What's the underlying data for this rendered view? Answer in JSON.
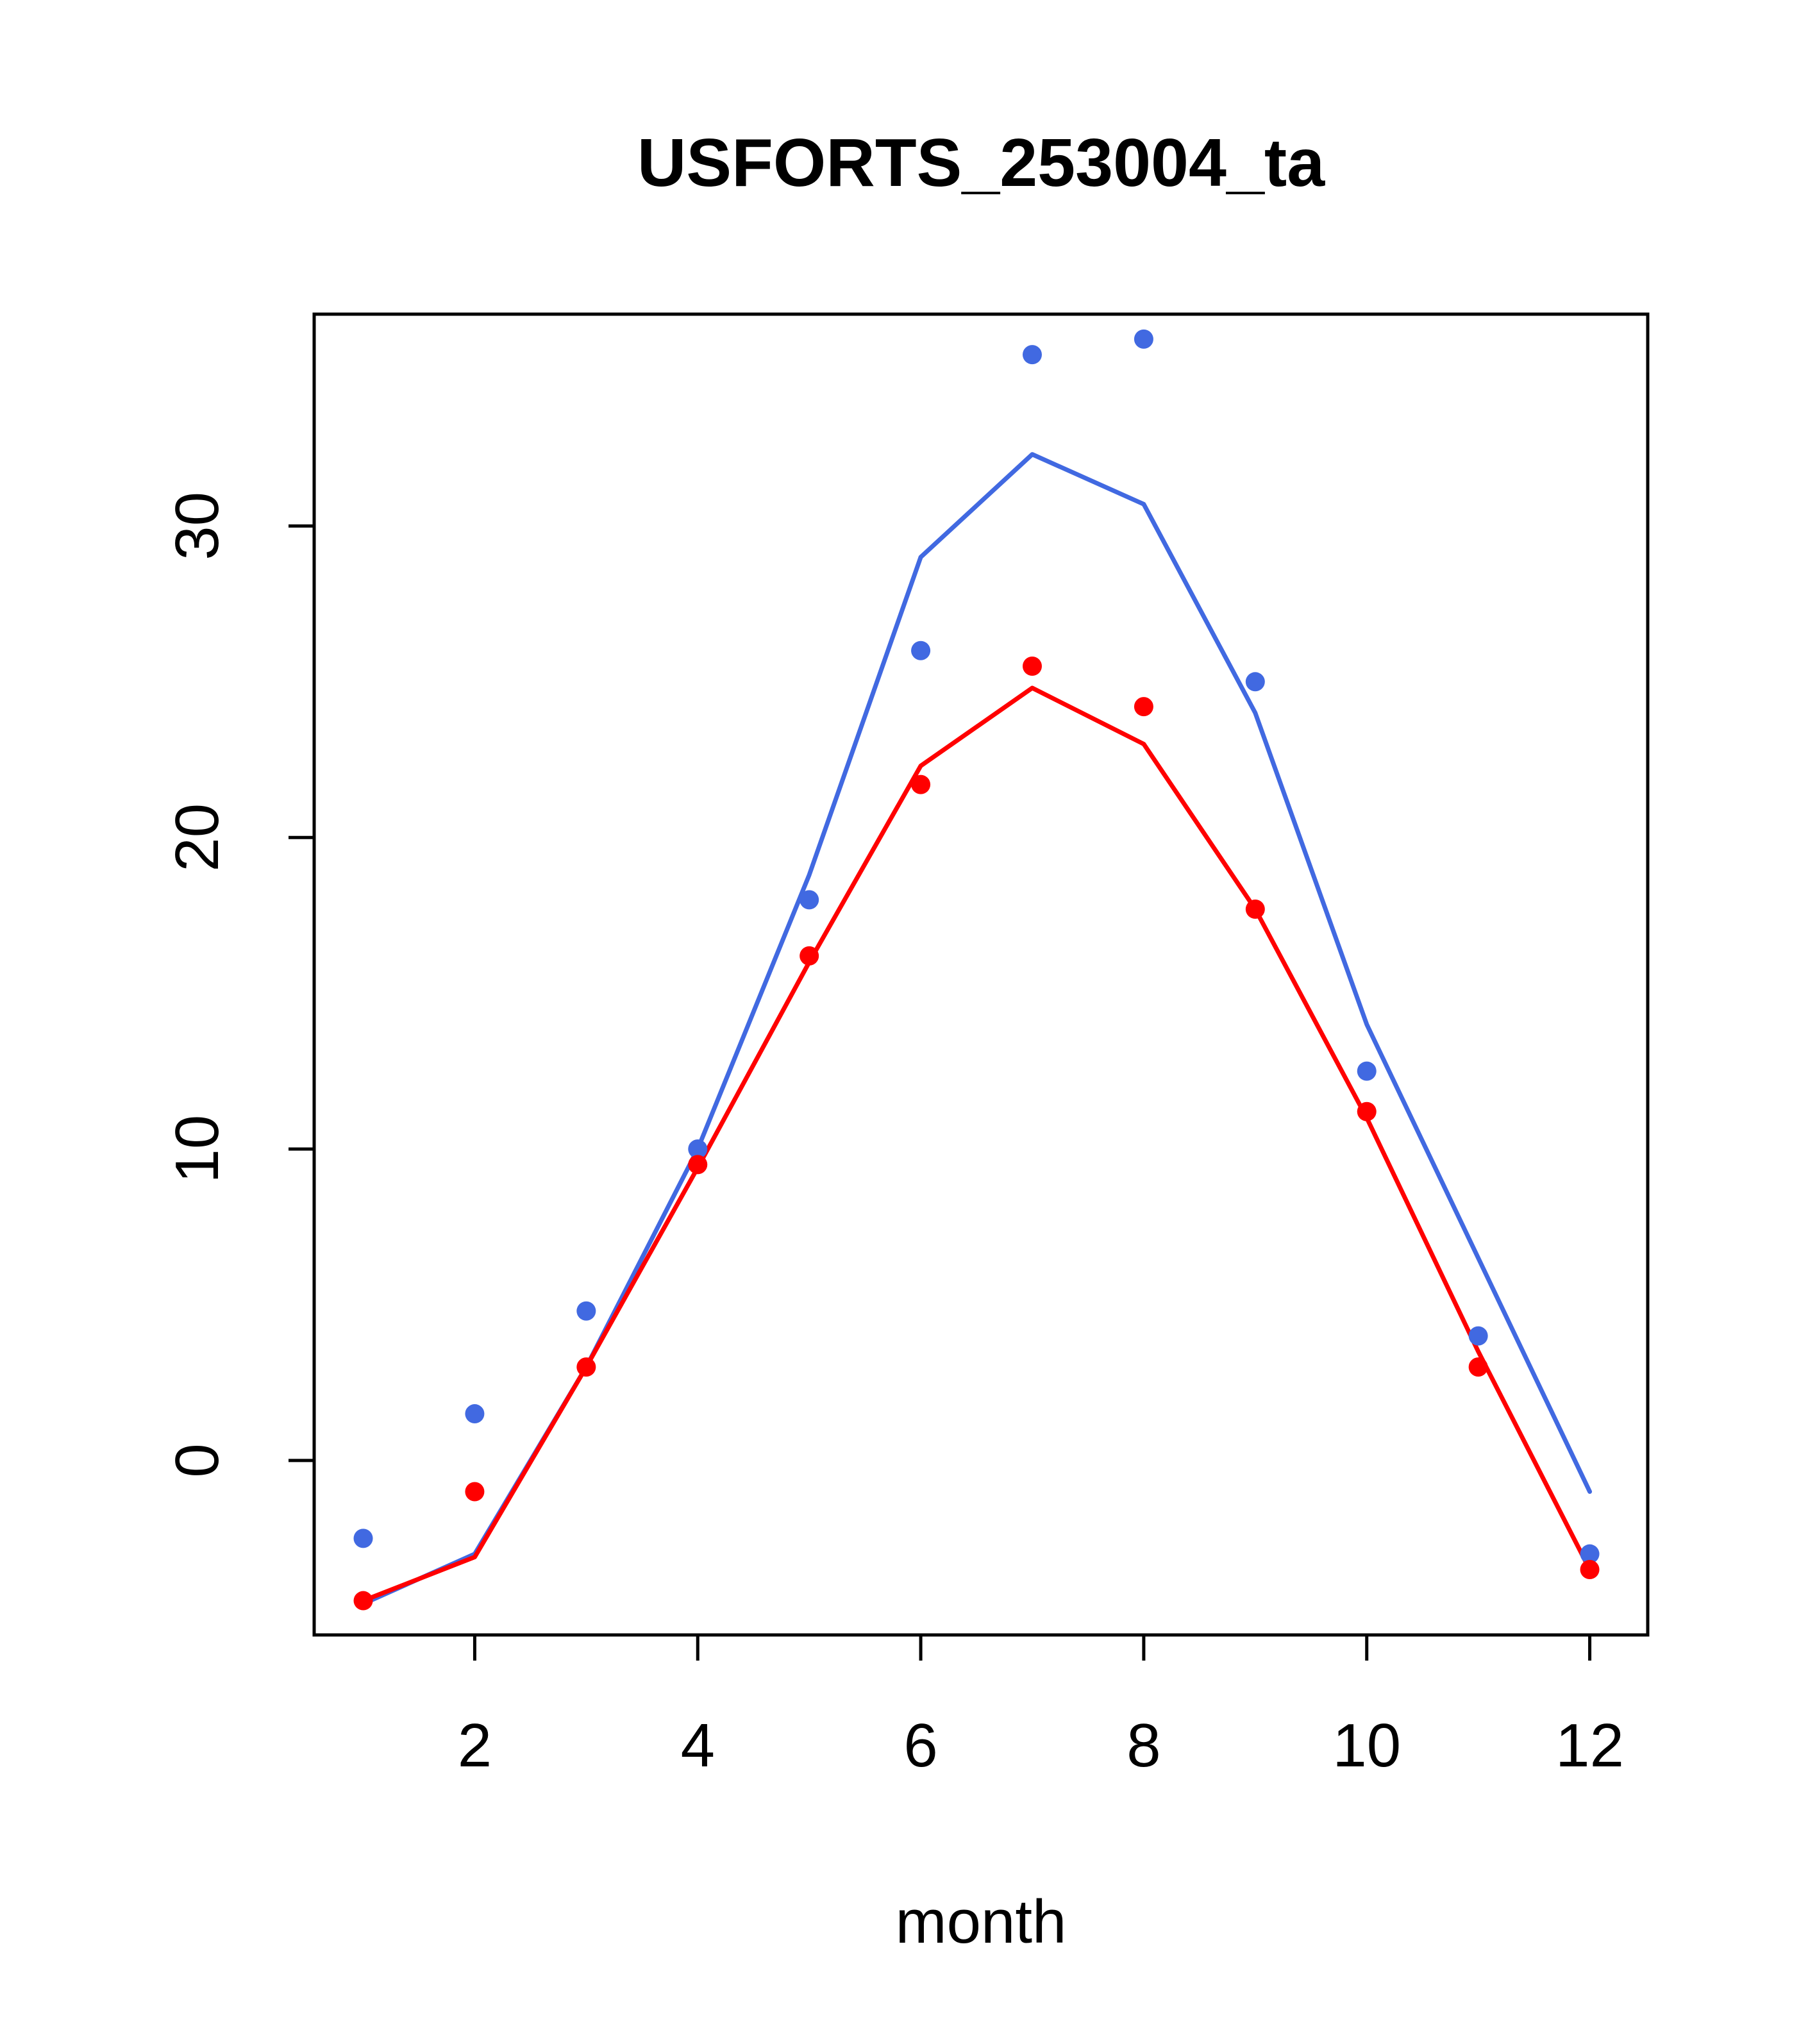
{
  "title": "USFORTS_253004_ta",
  "chart_data": {
    "type": "line",
    "title": "USFORTS_253004_ta",
    "xlabel": "month",
    "ylabel": "",
    "x": [
      1,
      2,
      3,
      4,
      5,
      6,
      7,
      8,
      9,
      10,
      11,
      12
    ],
    "xlim": [
      0.56,
      12.52
    ],
    "ylim": [
      -5.6,
      36.8
    ],
    "xticks": [
      2,
      4,
      6,
      8,
      10,
      12
    ],
    "yticks": [
      0,
      10,
      20,
      30
    ],
    "grid": false,
    "legend": "none",
    "colors": {
      "blue": "#4169E1",
      "red": "#FF0000"
    },
    "series": [
      {
        "name": "series-blue-line",
        "style": "line",
        "color": "#4169E1",
        "values": [
          -4.6,
          -3.0,
          3.0,
          10.0,
          18.8,
          29.0,
          32.3,
          30.7,
          24.0,
          14.0,
          6.5,
          -1.0
        ]
      },
      {
        "name": "series-red-line",
        "style": "line",
        "color": "#FF0000",
        "values": [
          -4.5,
          -3.1,
          3.0,
          9.4,
          16.0,
          22.3,
          24.8,
          23.0,
          17.7,
          11.0,
          3.5,
          -3.5
        ]
      },
      {
        "name": "series-blue-points",
        "style": "points",
        "color": "#4169E1",
        "values": [
          -2.5,
          1.5,
          4.8,
          10.0,
          18.0,
          26.0,
          35.5,
          36.0,
          25.0,
          12.5,
          4.0,
          -3.0
        ]
      },
      {
        "name": "series-red-points",
        "style": "points",
        "color": "#FF0000",
        "values": [
          -4.5,
          -1.0,
          3.0,
          9.5,
          16.2,
          21.7,
          25.5,
          24.2,
          17.7,
          11.2,
          3.0,
          -3.5
        ]
      }
    ]
  }
}
